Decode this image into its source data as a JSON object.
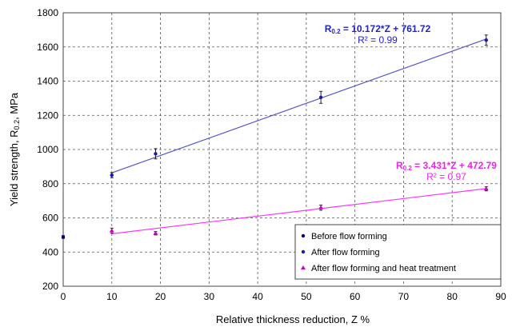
{
  "chart_data": {
    "type": "scatter",
    "xlabel": "Relative thickness reduction,  Z %",
    "ylabel_main": "Yield strength, R",
    "ylabel_sub": "0.2",
    "ylabel_tail": ", MPa",
    "xlim": [
      0,
      90
    ],
    "ylim": [
      200,
      1800
    ],
    "xticks": [
      "0",
      "10",
      "20",
      "30",
      "40",
      "50",
      "60",
      "70",
      "80",
      "90"
    ],
    "yticks": [
      "200",
      "400",
      "600",
      "800",
      "1000",
      "1200",
      "1400",
      "1600",
      "1800"
    ],
    "grid": true,
    "legend_position": "bottom-right",
    "series": [
      {
        "name": "Before flow forming",
        "color": "#000080",
        "marker": "dot",
        "x": [
          0
        ],
        "y": [
          488
        ],
        "err": [
          8
        ]
      },
      {
        "name": "After flow forming",
        "color": "#1a1aaa",
        "marker": "dot",
        "x": [
          10,
          19,
          53,
          87
        ],
        "y": [
          850,
          975,
          1305,
          1640
        ],
        "err": [
          15,
          30,
          35,
          30
        ],
        "fit": {
          "slope": 10.172,
          "intercept": 761.72,
          "color": "#5555cc",
          "eq_prefix": "R",
          "eq_sub": "0.2",
          "eq_rest": " = 10.172*Z + 761.72",
          "r2_label": "R² = 0.99",
          "text_color": "#2222cc"
        }
      },
      {
        "name": "After flow forming and heat treatment",
        "color": "#cc00cc",
        "marker": "triangle",
        "x": [
          10,
          19,
          53,
          87
        ],
        "y": [
          525,
          510,
          660,
          770
        ],
        "err": [
          15,
          10,
          15,
          12
        ],
        "fit": {
          "slope": 3.431,
          "intercept": 472.79,
          "color": "#ff33ff",
          "eq_prefix": "R",
          "eq_sub": "0.2",
          "eq_rest": " = 3.431*Z + 472.79",
          "r2_label": "R² = 0.97",
          "text_color": "#ee22ee"
        }
      }
    ]
  }
}
